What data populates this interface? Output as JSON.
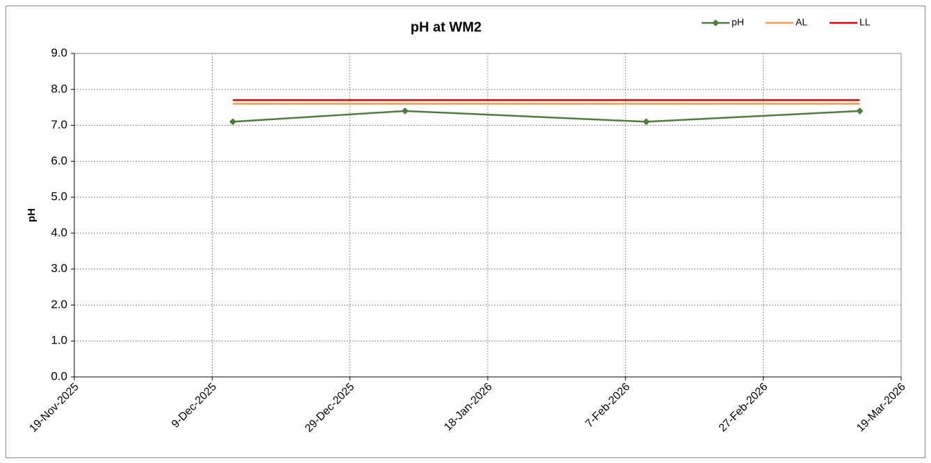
{
  "chart_data": {
    "type": "line",
    "title": "pH at WM2",
    "y_label": "pH",
    "x": [
      "2025-12-12",
      "2026-01-06",
      "2026-02-10",
      "2026-03-13"
    ],
    "series": [
      {
        "name": "pH",
        "color": "#4e7d3a",
        "marker": "diamond",
        "values": [
          7.1,
          7.4,
          7.1,
          7.4
        ]
      },
      {
        "name": "AL",
        "color": "#f79646",
        "values": [
          7.6,
          7.6,
          7.6,
          7.6
        ]
      },
      {
        "name": "LL",
        "color": "#e00000",
        "values": [
          7.7,
          7.7,
          7.7,
          7.7
        ]
      }
    ],
    "xlim": [
      "2025-11-19",
      "2026-03-19"
    ],
    "xticks": [
      {
        "value": "2025-11-19",
        "label": "19-Nov-2025"
      },
      {
        "value": "2025-12-09",
        "label": "9-Dec-2025"
      },
      {
        "value": "2025-12-29",
        "label": "29-Dec-2025"
      },
      {
        "value": "2026-01-18",
        "label": "18-Jan-2026"
      },
      {
        "value": "2026-02-07",
        "label": "7-Feb-2026"
      },
      {
        "value": "2026-02-27",
        "label": "27-Feb-2026"
      },
      {
        "value": "2026-03-19",
        "label": "19-Mar-2026"
      }
    ],
    "ylim": [
      0,
      9
    ],
    "yticks": [
      {
        "value": 0,
        "label": "0.0"
      },
      {
        "value": 1,
        "label": "1.0"
      },
      {
        "value": 2,
        "label": "2.0"
      },
      {
        "value": 3,
        "label": "3.0"
      },
      {
        "value": 4,
        "label": "4.0"
      },
      {
        "value": 5,
        "label": "5.0"
      },
      {
        "value": 6,
        "label": "6.0"
      },
      {
        "value": 7,
        "label": "7.0"
      },
      {
        "value": 8,
        "label": "8.0"
      },
      {
        "value": 9,
        "label": "9.0"
      }
    ],
    "grid": true,
    "legend": "top-right"
  }
}
